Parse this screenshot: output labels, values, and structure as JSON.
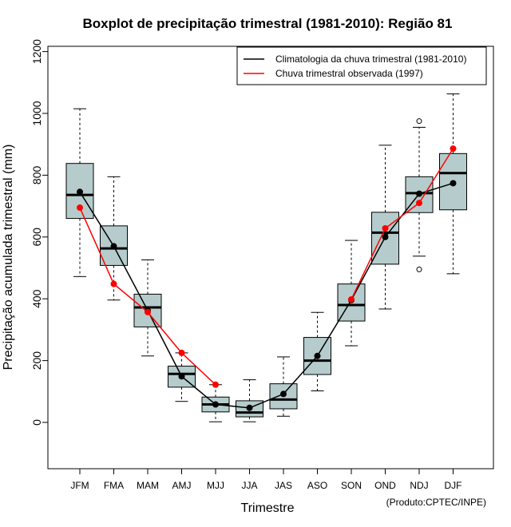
{
  "chart_data": {
    "type": "boxplot",
    "title": "Boxplot de precipitação trimestral (1981-2010): Região 81",
    "xlabel": "Trimestre",
    "ylabel": "Precipitação acumulada trimestral (mm)",
    "ylim": [
      -150,
      1220
    ],
    "yticks": [
      0,
      200,
      400,
      600,
      800,
      1000,
      1200
    ],
    "categories": [
      "JFM",
      "FMA",
      "MAM",
      "AMJ",
      "MJJ",
      "JJA",
      "JAS",
      "ASO",
      "SON",
      "OND",
      "NDJ",
      "DJF"
    ],
    "boxes": [
      {
        "min": 472,
        "q1": 660,
        "median": 736,
        "q3": 838,
        "max": 1015,
        "outliers": []
      },
      {
        "min": 396,
        "q1": 508,
        "median": 563,
        "q3": 636,
        "max": 795,
        "outliers": []
      },
      {
        "min": 215,
        "q1": 309,
        "median": 372,
        "q3": 415,
        "max": 526,
        "outliers": []
      },
      {
        "min": 68,
        "q1": 114,
        "median": 157,
        "q3": 182,
        "max": 225,
        "outliers": []
      },
      {
        "min": 2,
        "q1": 34,
        "median": 58,
        "q3": 82,
        "max": 122,
        "outliers": []
      },
      {
        "min": 2,
        "q1": 18,
        "median": 32,
        "q3": 70,
        "max": 138,
        "outliers": []
      },
      {
        "min": 20,
        "q1": 44,
        "median": 74,
        "q3": 125,
        "max": 212,
        "outliers": []
      },
      {
        "min": 102,
        "q1": 155,
        "median": 200,
        "q3": 275,
        "max": 356,
        "outliers": []
      },
      {
        "min": 248,
        "q1": 328,
        "median": 380,
        "q3": 448,
        "max": 589,
        "outliers": []
      },
      {
        "min": 367,
        "q1": 512,
        "median": 614,
        "q3": 680,
        "max": 897,
        "outliers": []
      },
      {
        "min": 538,
        "q1": 679,
        "median": 742,
        "q3": 795,
        "max": 955,
        "outliers": [
          975,
          495
        ]
      },
      {
        "min": 481,
        "q1": 688,
        "median": 807,
        "q3": 870,
        "max": 1063,
        "outliers": []
      }
    ],
    "series": [
      {
        "name": "Climatologia da chuva trimestral (1981-2010)",
        "color": "#000000",
        "values": [
          746,
          570,
          362,
          149,
          58,
          47,
          92,
          215,
          396,
          600,
          740,
          774
        ]
      },
      {
        "name": "Chuva trimestral observada (1997)",
        "color": "#ff0000",
        "values": [
          695,
          448,
          357,
          225,
          122,
          null,
          null,
          null,
          398,
          628,
          710,
          886
        ]
      }
    ],
    "box_color": "#b6cccc",
    "legend_position": "top-right"
  },
  "credit": "(Produto:CPTEC/INPE)"
}
